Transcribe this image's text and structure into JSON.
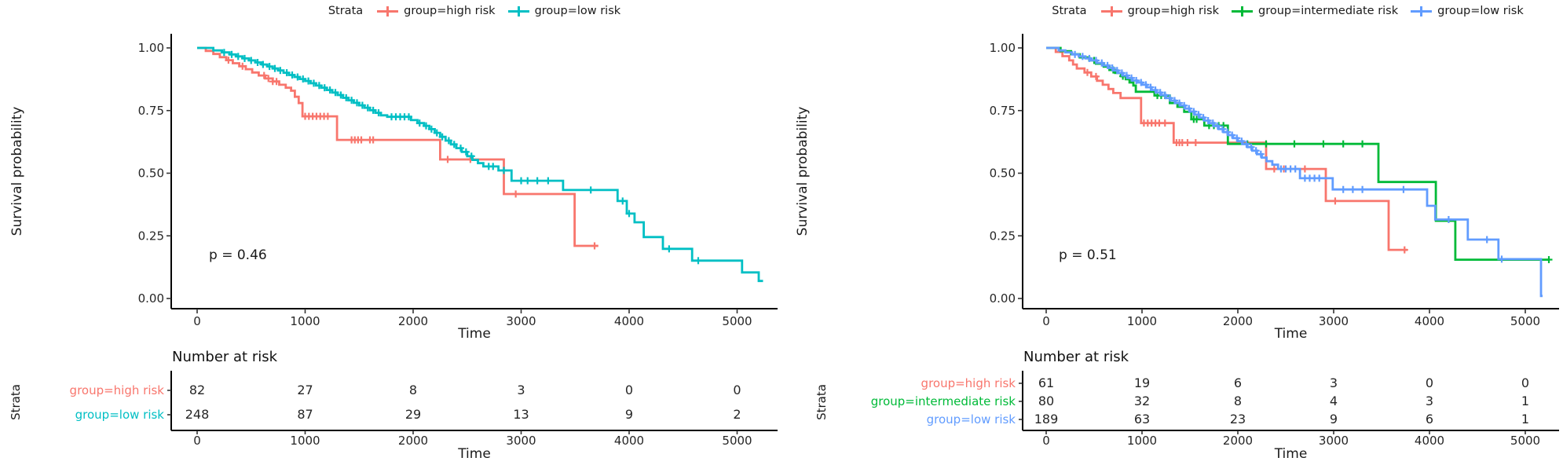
{
  "page": {
    "background": "#ffffff"
  },
  "colors": {
    "high_risk": "#F8766D",
    "intermediate_risk": "#00BA38",
    "low_risk_2group": "#00BFC4",
    "low_risk_3group": "#619CFF",
    "axis": "#000000",
    "text": "#1a1a1a",
    "tick_text": "#262626"
  },
  "chart_data": [
    {
      "type": "line",
      "subtype": "kaplan_meier_step",
      "legend_title": "Strata",
      "legend_position": "top",
      "grid": false,
      "ylabel": "Survival probability",
      "xlabel": "Time",
      "p_value": "p = 0.46",
      "xlim": [
        0,
        5250
      ],
      "ylim": [
        0.0,
        1.0
      ],
      "x_ticks": [
        0,
        1000,
        2000,
        3000,
        4000,
        5000
      ],
      "y_ticks": [
        {
          "value": 1.0,
          "label": "1.00"
        },
        {
          "value": 0.75,
          "label": "0.75"
        },
        {
          "value": 0.5,
          "label": "0.50"
        },
        {
          "value": 0.25,
          "label": "0.25"
        },
        {
          "value": 0.0,
          "label": "0.00"
        }
      ],
      "series": [
        {
          "name": "group=high risk",
          "color": "#F8766D",
          "steps": [
            [
              80,
              0.988
            ],
            [
              150,
              0.976
            ],
            [
              210,
              0.963
            ],
            [
              270,
              0.951
            ],
            [
              330,
              0.939
            ],
            [
              390,
              0.927
            ],
            [
              450,
              0.915
            ],
            [
              510,
              0.902
            ],
            [
              570,
              0.89
            ],
            [
              630,
              0.878
            ],
            [
              700,
              0.866
            ],
            [
              760,
              0.853
            ],
            [
              820,
              0.841
            ],
            [
              870,
              0.829
            ],
            [
              905,
              0.805
            ],
            [
              940,
              0.78
            ],
            [
              975,
              0.727
            ],
            [
              1295,
              0.633
            ],
            [
              2250,
              0.555
            ],
            [
              2840,
              0.417
            ],
            [
              3495,
              0.21
            ]
          ],
          "end_time": 3715,
          "censor_times": [
            290,
            420,
            620,
            660,
            700,
            735,
            1000,
            1035,
            1070,
            1105,
            1140,
            1175,
            1210,
            1430,
            1460,
            1490,
            1520,
            1600,
            1630,
            2320,
            2530,
            2950,
            3680
          ]
        },
        {
          "name": "group=low risk",
          "color": "#00BFC4",
          "steps": [
            [
              150,
              0.99
            ],
            [
              230,
              0.982
            ],
            [
              300,
              0.974
            ],
            [
              360,
              0.966
            ],
            [
              420,
              0.958
            ],
            [
              480,
              0.95
            ],
            [
              540,
              0.942
            ],
            [
              600,
              0.934
            ],
            [
              650,
              0.926
            ],
            [
              700,
              0.918
            ],
            [
              750,
              0.91
            ],
            [
              800,
              0.901
            ],
            [
              850,
              0.892
            ],
            [
              900,
              0.884
            ],
            [
              950,
              0.876
            ],
            [
              1000,
              0.868
            ],
            [
              1050,
              0.859
            ],
            [
              1100,
              0.85
            ],
            [
              1150,
              0.841
            ],
            [
              1200,
              0.832
            ],
            [
              1250,
              0.822
            ],
            [
              1300,
              0.812
            ],
            [
              1350,
              0.801
            ],
            [
              1400,
              0.791
            ],
            [
              1450,
              0.781
            ],
            [
              1500,
              0.771
            ],
            [
              1550,
              0.761
            ],
            [
              1600,
              0.751
            ],
            [
              1650,
              0.741
            ],
            [
              1700,
              0.731
            ],
            [
              1760,
              0.725
            ],
            [
              1980,
              0.712
            ],
            [
              2040,
              0.7
            ],
            [
              2100,
              0.689
            ],
            [
              2150,
              0.676
            ],
            [
              2200,
              0.661
            ],
            [
              2250,
              0.645
            ],
            [
              2300,
              0.63
            ],
            [
              2350,
              0.615
            ],
            [
              2400,
              0.6
            ],
            [
              2450,
              0.585
            ],
            [
              2500,
              0.568
            ],
            [
              2550,
              0.553
            ],
            [
              2600,
              0.54
            ],
            [
              2650,
              0.527
            ],
            [
              2790,
              0.511
            ],
            [
              2911,
              0.47
            ],
            [
              3388,
              0.433
            ],
            [
              3893,
              0.389
            ],
            [
              3978,
              0.339
            ],
            [
              4050,
              0.304
            ],
            [
              4135,
              0.245
            ],
            [
              4313,
              0.198
            ],
            [
              4583,
              0.151
            ],
            [
              5046,
              0.104
            ],
            [
              5200,
              0.07
            ]
          ],
          "end_time": 5240,
          "censor_times": [
            250,
            320,
            380,
            440,
            500,
            560,
            610,
            670,
            720,
            770,
            830,
            880,
            930,
            980,
            1030,
            1080,
            1130,
            1180,
            1230,
            1280,
            1330,
            1380,
            1430,
            1480,
            1530,
            1580,
            1630,
            1680,
            1800,
            1840,
            1880,
            1920,
            1960,
            2060,
            2120,
            2170,
            2220,
            2270,
            2330,
            2380,
            2440,
            2490,
            2540,
            2700,
            2740,
            2840,
            3000,
            3060,
            3150,
            3250,
            3645,
            3940,
            4000,
            4370,
            4640
          ]
        }
      ],
      "risk_table": {
        "title": "Number at risk",
        "axis_label": "Strata",
        "xlabel": "Time",
        "time_points": [
          0,
          1000,
          2000,
          3000,
          4000,
          5000
        ],
        "rows": [
          {
            "label": "group=high risk",
            "color": "#F8766D",
            "counts": [
              82,
              27,
              8,
              3,
              0,
              0
            ]
          },
          {
            "label": "group=low risk",
            "color": "#00BFC4",
            "counts": [
              248,
              87,
              29,
              13,
              9,
              2
            ]
          }
        ]
      }
    },
    {
      "type": "line",
      "subtype": "kaplan_meier_step",
      "legend_title": "Strata",
      "legend_position": "top",
      "grid": false,
      "ylabel": "Survival probability",
      "xlabel": "Time",
      "p_value": "p = 0.51",
      "xlim": [
        0,
        5250
      ],
      "ylim": [
        0.0,
        1.0
      ],
      "x_ticks": [
        0,
        1000,
        2000,
        3000,
        4000,
        5000
      ],
      "y_ticks": [
        {
          "value": 1.0,
          "label": "1.00"
        },
        {
          "value": 0.75,
          "label": "0.75"
        },
        {
          "value": 0.5,
          "label": "0.50"
        },
        {
          "value": 0.25,
          "label": "0.25"
        },
        {
          "value": 0.0,
          "label": "0.00"
        }
      ],
      "series": [
        {
          "name": "group=high risk",
          "color": "#F8766D",
          "steps": [
            [
              100,
              0.984
            ],
            [
              170,
              0.967
            ],
            [
              240,
              0.95
            ],
            [
              280,
              0.934
            ],
            [
              320,
              0.918
            ],
            [
              400,
              0.902
            ],
            [
              470,
              0.886
            ],
            [
              530,
              0.869
            ],
            [
              590,
              0.853
            ],
            [
              650,
              0.836
            ],
            [
              700,
              0.82
            ],
            [
              776,
              0.8
            ],
            [
              990,
              0.7
            ],
            [
              1330,
              0.622
            ],
            [
              2295,
              0.517
            ],
            [
              2918,
              0.389
            ],
            [
              3574,
              0.194
            ]
          ],
          "end_time": 3770,
          "censor_times": [
            430,
            520,
            1020,
            1060,
            1100,
            1140,
            1180,
            1240,
            1360,
            1390,
            1420,
            1475,
            1560,
            2380,
            2480,
            2700,
            3016,
            3740
          ]
        },
        {
          "name": "group=intermediate risk",
          "color": "#00BA38",
          "steps": [
            [
              150,
              0.987
            ],
            [
              260,
              0.975
            ],
            [
              350,
              0.962
            ],
            [
              450,
              0.95
            ],
            [
              520,
              0.937
            ],
            [
              600,
              0.925
            ],
            [
              660,
              0.912
            ],
            [
              720,
              0.9
            ],
            [
              780,
              0.887
            ],
            [
              830,
              0.875
            ],
            [
              870,
              0.862
            ],
            [
              910,
              0.85
            ],
            [
              935,
              0.825
            ],
            [
              1130,
              0.81
            ],
            [
              1290,
              0.78
            ],
            [
              1370,
              0.765
            ],
            [
              1440,
              0.745
            ],
            [
              1515,
              0.715
            ],
            [
              1650,
              0.69
            ],
            [
              1896,
              0.617
            ],
            [
              3467,
              0.465
            ],
            [
              4066,
              0.31
            ],
            [
              4270,
              0.155
            ]
          ],
          "end_time": 5246,
          "censor_times": [
            500,
            700,
            800,
            1160,
            1200,
            1240,
            1540,
            1570,
            1700,
            1750,
            1800,
            1850,
            2100,
            2295,
            2590,
            2893,
            3100,
            3300,
            5246
          ]
        },
        {
          "name": "group=low risk",
          "color": "#619CFF",
          "steps": [
            [
              130,
              0.99
            ],
            [
              200,
              0.982
            ],
            [
              270,
              0.974
            ],
            [
              340,
              0.966
            ],
            [
              410,
              0.958
            ],
            [
              470,
              0.95
            ],
            [
              530,
              0.94
            ],
            [
              590,
              0.93
            ],
            [
              650,
              0.92
            ],
            [
              700,
              0.91
            ],
            [
              750,
              0.9
            ],
            [
              800,
              0.89
            ],
            [
              850,
              0.88
            ],
            [
              900,
              0.87
            ],
            [
              950,
              0.862
            ],
            [
              1000,
              0.853
            ],
            [
              1050,
              0.843
            ],
            [
              1100,
              0.832
            ],
            [
              1150,
              0.822
            ],
            [
              1200,
              0.812
            ],
            [
              1250,
              0.8
            ],
            [
              1300,
              0.79
            ],
            [
              1350,
              0.78
            ],
            [
              1400,
              0.77
            ],
            [
              1450,
              0.758
            ],
            [
              1500,
              0.746
            ],
            [
              1550,
              0.734
            ],
            [
              1600,
              0.722
            ],
            [
              1650,
              0.71
            ],
            [
              1700,
              0.7
            ],
            [
              1750,
              0.688
            ],
            [
              1800,
              0.676
            ],
            [
              1850,
              0.664
            ],
            [
              1900,
              0.652
            ],
            [
              1950,
              0.64
            ],
            [
              2000,
              0.628
            ],
            [
              2050,
              0.616
            ],
            [
              2100,
              0.604
            ],
            [
              2150,
              0.59
            ],
            [
              2200,
              0.576
            ],
            [
              2250,
              0.562
            ],
            [
              2300,
              0.548
            ],
            [
              2360,
              0.534
            ],
            [
              2420,
              0.517
            ],
            [
              2648,
              0.48
            ],
            [
              2990,
              0.435
            ],
            [
              3975,
              0.37
            ],
            [
              4060,
              0.315
            ],
            [
              4400,
              0.235
            ],
            [
              4720,
              0.157
            ],
            [
              5164,
              0.01
            ]
          ],
          "end_time": 5180,
          "censor_times": [
            300,
            380,
            450,
            520,
            580,
            640,
            690,
            740,
            790,
            840,
            890,
            940,
            990,
            1040,
            1090,
            1140,
            1190,
            1240,
            1290,
            1340,
            1390,
            1440,
            1490,
            1540,
            1590,
            1640,
            1690,
            1740,
            1790,
            1840,
            1890,
            1940,
            1990,
            2040,
            2090,
            2140,
            2190,
            2240,
            2450,
            2500,
            2550,
            2600,
            2700,
            2750,
            2800,
            2850,
            3100,
            3200,
            3300,
            3729,
            4200,
            4600,
            4754
          ]
        }
      ],
      "risk_table": {
        "title": "Number at risk",
        "axis_label": "Strata",
        "xlabel": "Time",
        "time_points": [
          0,
          1000,
          2000,
          3000,
          4000,
          5000
        ],
        "rows": [
          {
            "label": "group=high risk",
            "color": "#F8766D",
            "counts": [
              61,
              19,
              6,
              3,
              0,
              0
            ]
          },
          {
            "label": "group=intermediate risk",
            "color": "#00BA38",
            "counts": [
              80,
              32,
              8,
              4,
              3,
              1
            ]
          },
          {
            "label": "group=low risk",
            "color": "#619CFF",
            "counts": [
              189,
              63,
              23,
              9,
              6,
              1
            ]
          }
        ]
      }
    }
  ]
}
